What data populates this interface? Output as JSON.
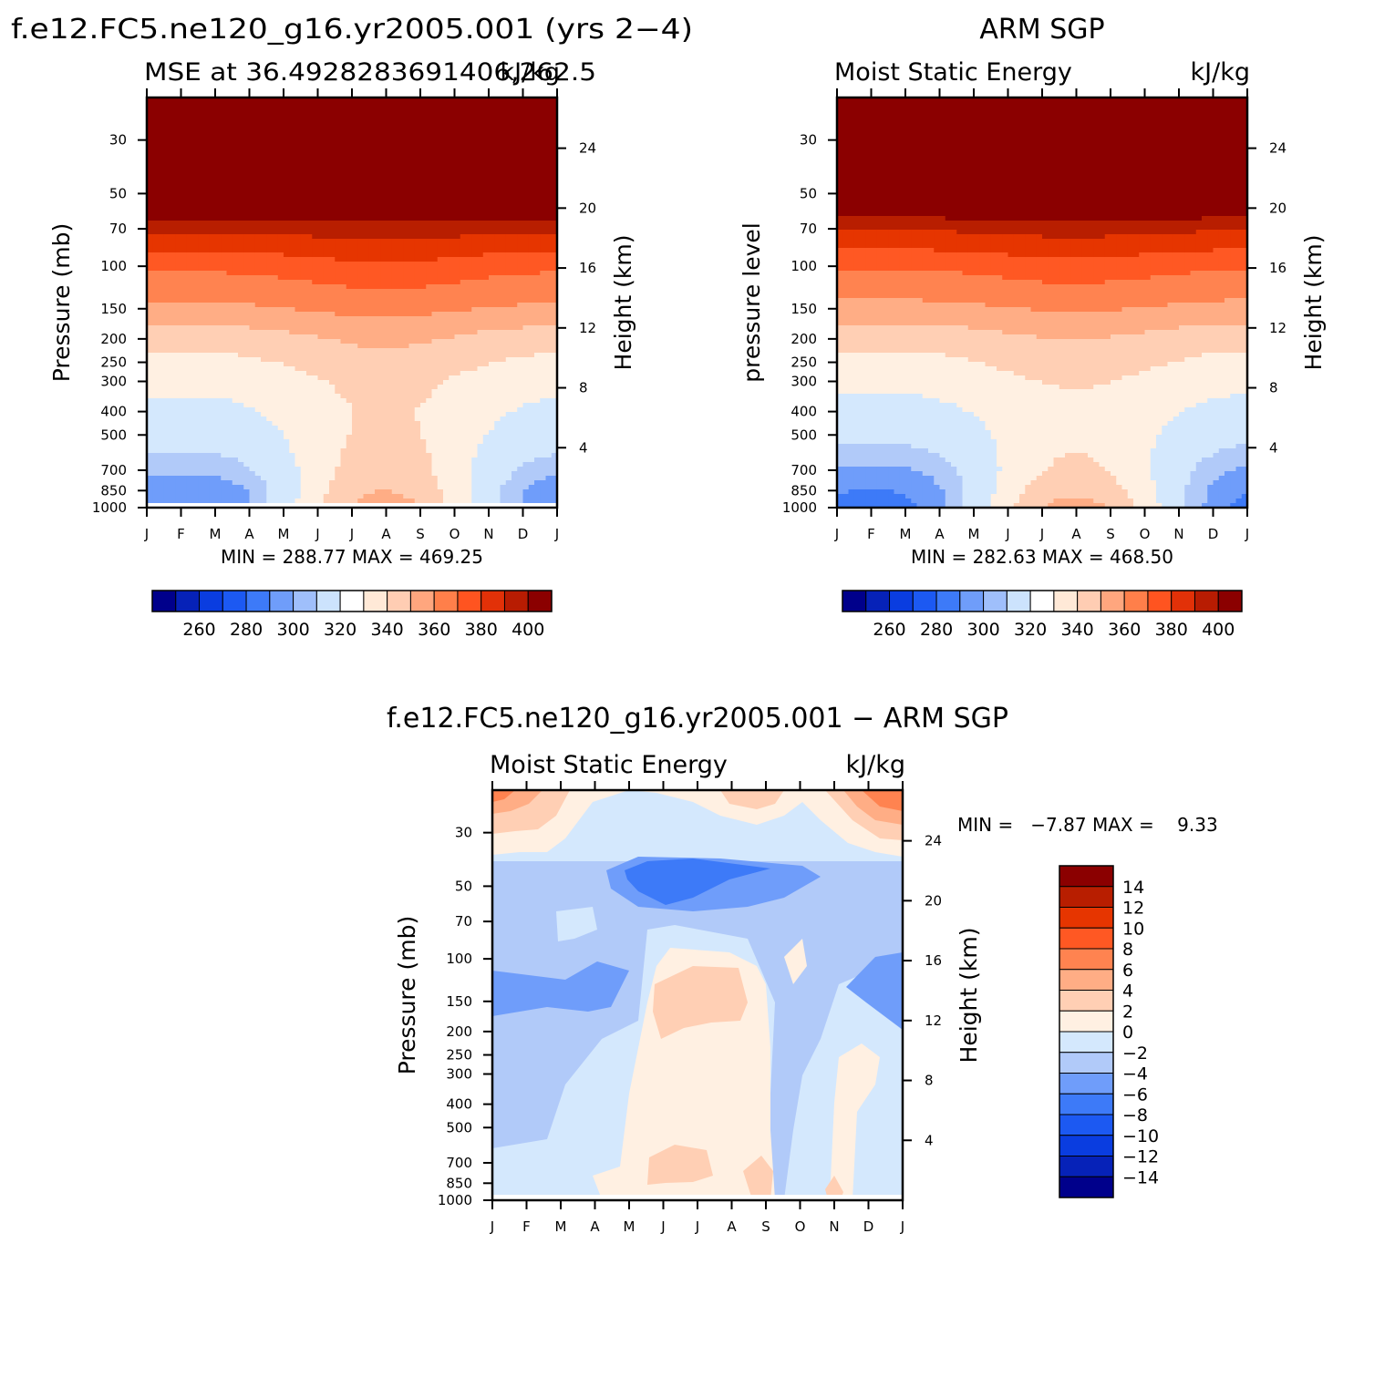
{
  "colors": {
    "abs_palette": [
      "#00008b",
      "#0622b8",
      "#0a3de0",
      "#1c59f2",
      "#3d7af8",
      "#6f9dfa",
      "#9fbffb",
      "#cce3fd",
      "#ffffff",
      "#ffe9d7",
      "#ffcdb3",
      "#ffa67e",
      "#ff7f4a",
      "#ff5420",
      "#e23108",
      "#b81c02",
      "#8b0000"
    ],
    "abs_fills": [
      "#3d7af8",
      "#6f9dfa",
      "#b1caf9",
      "#d4e8fd",
      "#fff0e2",
      "#ffcfb4",
      "#ffad85",
      "#ff8350",
      "#ff5823",
      "#e63500",
      "#b81e00",
      "#8b0000"
    ],
    "diff_palette": [
      "#00008b",
      "#0622b8",
      "#0a3de0",
      "#1c59f2",
      "#3d7af8",
      "#6f9dfa",
      "#b1caf9",
      "#d4e8fd",
      "#fff0e2",
      "#ffcfb4",
      "#ffad85",
      "#ff8350",
      "#ff5823",
      "#e63500",
      "#b81e00",
      "#8b0000"
    ],
    "axis": "#000000"
  },
  "chart_data": [
    {
      "id": "model",
      "type": "heatmap",
      "title": "f.e12.FC5.ne120_g16.yr2005.001 (yrs 2−4)",
      "subtitle_left": "MSE at 36.4928283691406,262.5",
      "subtitle_right": "kJ/kg",
      "ylabel": "Pressure (mb)",
      "ylabel_right": "Height (km)",
      "x_ticks": [
        "J",
        "F",
        "M",
        "A",
        "M",
        "J",
        "J",
        "A",
        "S",
        "O",
        "N",
        "D",
        "J"
      ],
      "y_ticks": [
        "30",
        "50",
        "70",
        "100",
        "150",
        "200",
        "250",
        "300",
        "400",
        "500",
        "700",
        "850",
        "1000"
      ],
      "y_ticks_right": [
        "24",
        "20",
        "16",
        "12",
        "8",
        "4"
      ],
      "ylim_mb": [
        20,
        1000
      ],
      "stats": "MIN = 288.77 MAX = 469.25",
      "colorbar_labels": [
        "260",
        "280",
        "300",
        "320",
        "340",
        "360",
        "380",
        "400"
      ],
      "contour_levels_kJkg": [
        240,
        250,
        260,
        270,
        280,
        290,
        300,
        310,
        320,
        330,
        340,
        350,
        360,
        370,
        380,
        390,
        400
      ],
      "profile_levels_mb": [
        1000,
        850,
        700,
        500,
        400,
        300,
        200,
        150,
        100,
        70,
        50
      ],
      "mse_winter_kJkg": [
        300,
        301,
        306,
        314,
        318,
        322,
        334,
        348,
        362,
        382,
        410
      ],
      "mse_summer_kJkg": [
        345,
        340,
        336,
        332,
        331,
        333,
        342,
        353,
        368,
        385,
        410
      ]
    },
    {
      "id": "obs",
      "type": "heatmap",
      "title": "ARM SGP",
      "subtitle_left": "Moist Static Energy",
      "subtitle_right": "kJ/kg",
      "ylabel": "pressure level",
      "ylabel_right": "Height (km)",
      "x_ticks": [
        "J",
        "F",
        "M",
        "A",
        "M",
        "J",
        "J",
        "A",
        "S",
        "O",
        "N",
        "D",
        "J"
      ],
      "y_ticks": [
        "30",
        "50",
        "70",
        "100",
        "150",
        "200",
        "250",
        "300",
        "400",
        "500",
        "700",
        "850",
        "1000"
      ],
      "y_ticks_right": [
        "24",
        "20",
        "16",
        "12",
        "8",
        "4"
      ],
      "ylim_mb": [
        20,
        1000
      ],
      "stats": "MIN = 282.63 MAX = 468.50",
      "colorbar_labels": [
        "260",
        "280",
        "300",
        "320",
        "340",
        "360",
        "380",
        "400"
      ],
      "contour_levels_kJkg": [
        240,
        250,
        260,
        270,
        280,
        290,
        300,
        310,
        320,
        330,
        340,
        350,
        360,
        370,
        380,
        390,
        400
      ],
      "profile_levels_mb": [
        1000,
        850,
        700,
        500,
        400,
        300,
        200,
        150,
        100,
        70,
        50
      ],
      "mse_winter_kJkg": [
        298,
        300,
        304,
        312,
        317,
        322,
        333,
        347,
        361,
        381,
        410
      ],
      "mse_summer_kJkg": [
        344,
        338,
        332,
        328,
        327,
        331,
        340,
        351,
        366,
        384,
        410
      ]
    },
    {
      "id": "diff",
      "type": "heatmap",
      "title": "f.e12.FC5.ne120_g16.yr2005.001 − ARM SGP",
      "subtitle_left": "Moist Static Energy",
      "subtitle_right": "kJ/kg",
      "ylabel": "Pressure (mb)",
      "ylabel_right": "Height (km)",
      "x_ticks": [
        "J",
        "F",
        "M",
        "A",
        "M",
        "J",
        "J",
        "A",
        "S",
        "O",
        "N",
        "D",
        "J"
      ],
      "y_ticks": [
        "30",
        "50",
        "70",
        "100",
        "150",
        "200",
        "250",
        "300",
        "400",
        "500",
        "700",
        "850",
        "1000"
      ],
      "y_ticks_right": [
        "24",
        "20",
        "16",
        "12",
        "8",
        "4"
      ],
      "ylim_mb": [
        20,
        1000
      ],
      "stats": "MIN =   −7.87 MAX =    9.33",
      "colorbar_labels": [
        "14",
        "12",
        "10",
        "8",
        "6",
        "4",
        "2",
        "0",
        "−2",
        "−4",
        "−6",
        "−8",
        "−10",
        "−12",
        "−14"
      ],
      "contour_levels_kJkg": [
        -14,
        -12,
        -10,
        -8,
        -6,
        -4,
        -2,
        0,
        2,
        4,
        6,
        8,
        10,
        12,
        14
      ]
    }
  ]
}
